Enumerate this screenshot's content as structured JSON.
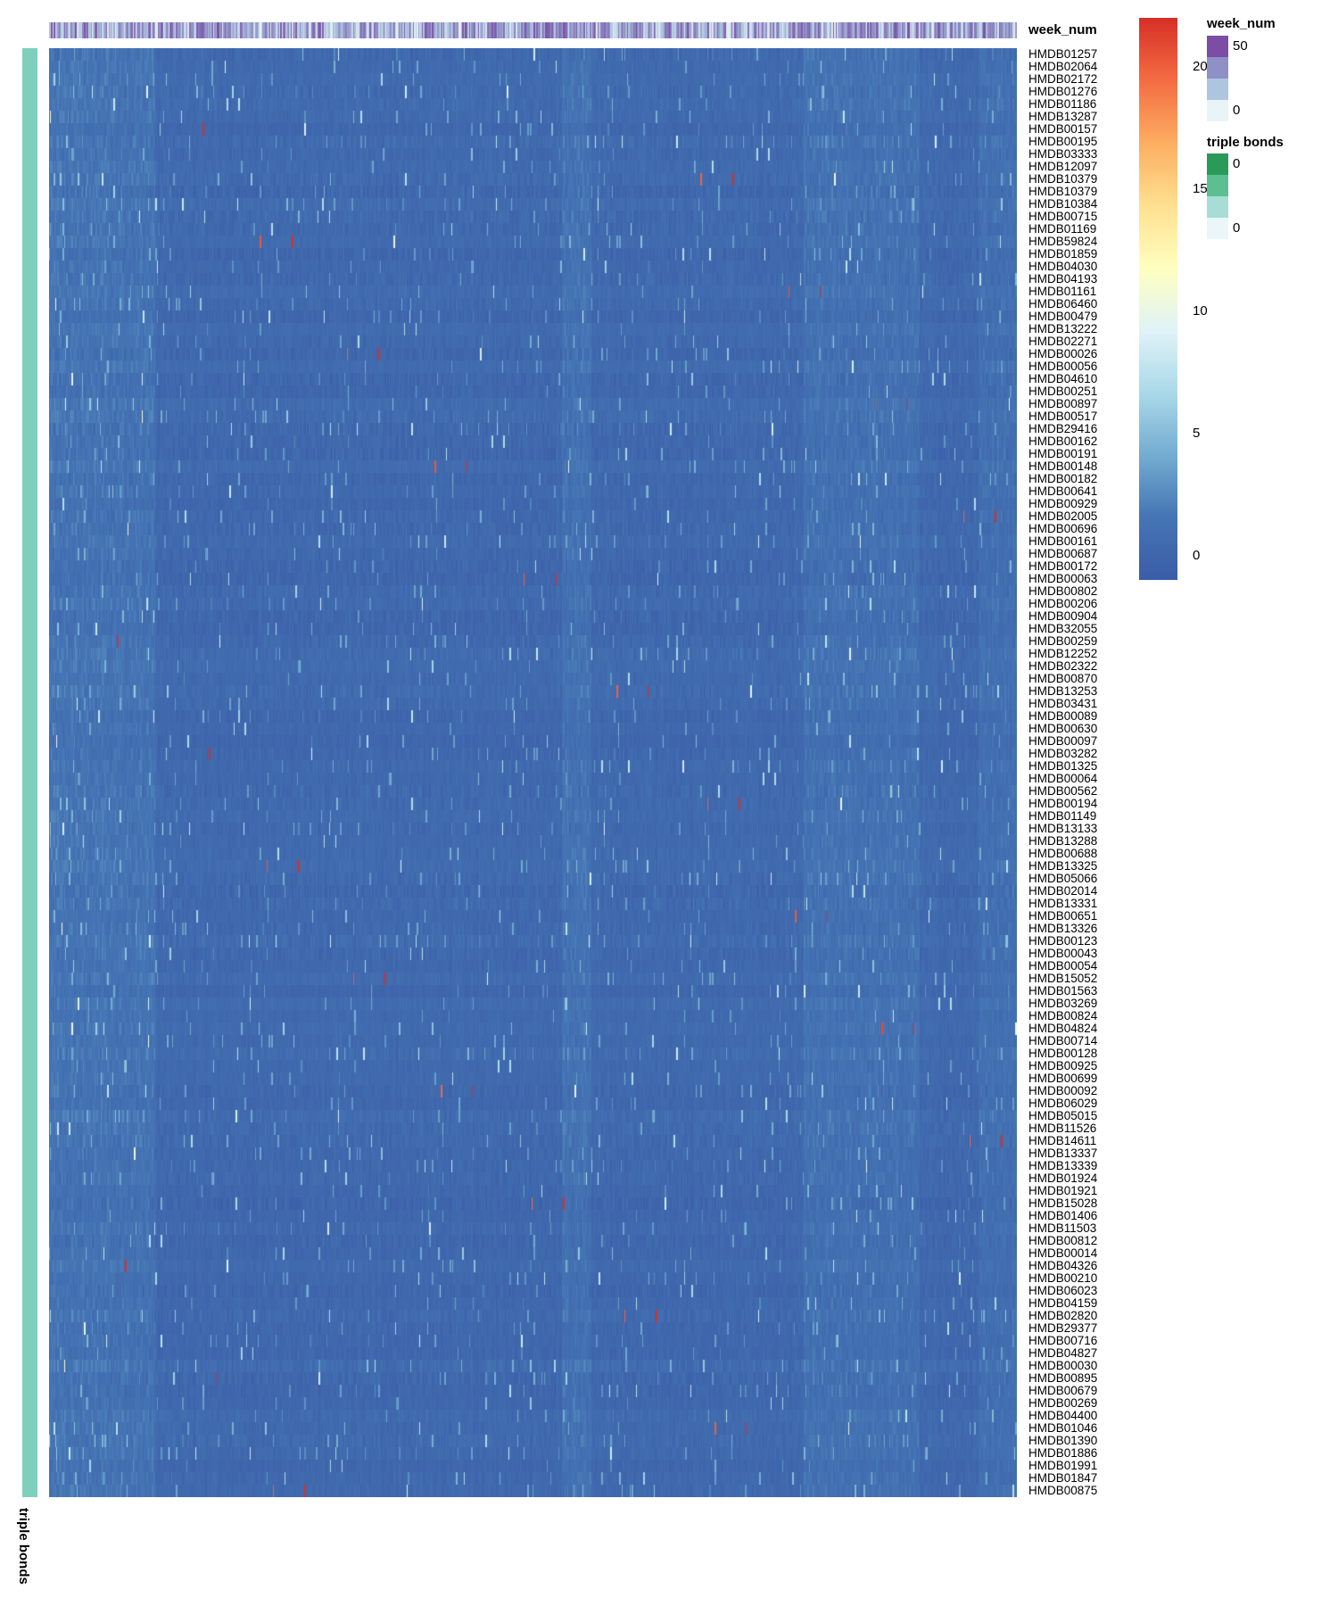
{
  "chart_data": {
    "type": "heatmap",
    "row_labels": [
      "HMDB01257",
      "HMDB02064",
      "HMDB02172",
      "HMDB01276",
      "HMDB01186",
      "HMDB13287",
      "HMDB00157",
      "HMDB00195",
      "HMDB03333",
      "HMDB12097",
      "HMDB10379",
      "HMDB10379",
      "HMDB10384",
      "HMDB00715",
      "HMDB01169",
      "HMDB59824",
      "HMDB01859",
      "HMDB04030",
      "HMDB04193",
      "HMDB01161",
      "HMDB06460",
      "HMDB00479",
      "HMDB13222",
      "HMDB02271",
      "HMDB00026",
      "HMDB00056",
      "HMDB04610",
      "HMDB00251",
      "HMDB00897",
      "HMDB00517",
      "HMDB29416",
      "HMDB00162",
      "HMDB00191",
      "HMDB00148",
      "HMDB00182",
      "HMDB00641",
      "HMDB00929",
      "HMDB02005",
      "HMDB00696",
      "HMDB00161",
      "HMDB00687",
      "HMDB00172",
      "HMDB00063",
      "HMDB00802",
      "HMDB00206",
      "HMDB00904",
      "HMDB32055",
      "HMDB00259",
      "HMDB12252",
      "HMDB02322",
      "HMDB00870",
      "HMDB13253",
      "HMDB03431",
      "HMDB00089",
      "HMDB00630",
      "HMDB00097",
      "HMDB03282",
      "HMDB01325",
      "HMDB00064",
      "HMDB00562",
      "HMDB00194",
      "HMDB01149",
      "HMDB13133",
      "HMDB13288",
      "HMDB00688",
      "HMDB13325",
      "HMDB05066",
      "HMDB02014",
      "HMDB13331",
      "HMDB00651",
      "HMDB13326",
      "HMDB00123",
      "HMDB00043",
      "HMDB00054",
      "HMDB15052",
      "HMDB01563",
      "HMDB03269",
      "HMDB00824",
      "HMDB04824",
      "HMDB00714",
      "HMDB00128",
      "HMDB00925",
      "HMDB00699",
      "HMDB00092",
      "HMDB06029",
      "HMDB05015",
      "HMDB11526",
      "HMDB14611",
      "HMDB13337",
      "HMDB13339",
      "HMDB01924",
      "HMDB01921",
      "HMDB15028",
      "HMDB01406",
      "HMDB11503",
      "HMDB00812",
      "HMDB00014",
      "HMDB04326",
      "HMDB00210",
      "HMDB06023",
      "HMDB04159",
      "HMDB02820",
      "HMDB29377",
      "HMDB00716",
      "HMDB04827",
      "HMDB00030",
      "HMDB00895",
      "HMDB00679",
      "HMDB00269",
      "HMDB04400",
      "HMDB01046",
      "HMDB01390",
      "HMDB01886",
      "HMDB01991",
      "HMDB01847",
      "HMDB00875"
    ],
    "column_labels": [],
    "value_range": [
      -1,
      22
    ],
    "colorbar": {
      "ticks": [
        "20",
        "15",
        "10",
        "5",
        "0"
      ],
      "tick_values": [
        20,
        15,
        10,
        5,
        0
      ],
      "colors": [
        "#3B5DA8",
        "#4575B4",
        "#74ADD1",
        "#ABD9E9",
        "#E0F3F8",
        "#FFFFBF",
        "#FEE090",
        "#FDAE61",
        "#F46D43",
        "#D73027"
      ]
    },
    "top_annotation": {
      "name": "week_num",
      "legend_title": "week_num",
      "legend_labels": [
        "50",
        "",
        "",
        "0"
      ],
      "legend_colors": [
        "#7B4DA5",
        "#8F90C6",
        "#AEC5DE",
        "#E8F4F8"
      ]
    },
    "side_annotation": {
      "name": "triple bonds",
      "legend_title": "triple bonds",
      "legend_labels": [
        "0",
        "",
        "",
        "0"
      ],
      "legend_colors": [
        "#2A9A58",
        "#5DBE92",
        "#A7DDD5",
        "#EAF6F8"
      ],
      "bar_color": "#7ECFBB"
    },
    "grid": false,
    "legend_position": "right"
  }
}
